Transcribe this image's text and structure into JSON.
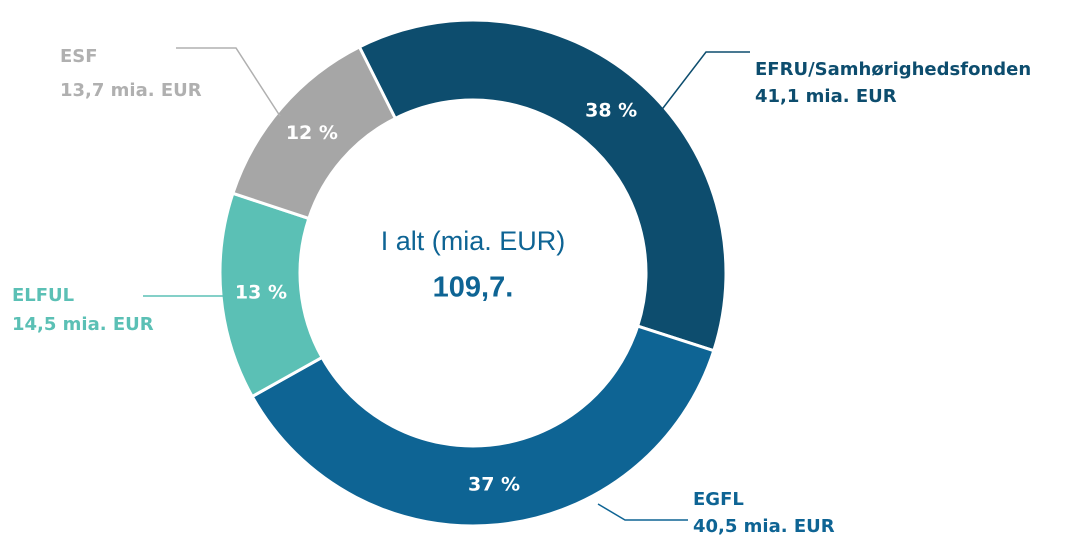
{
  "chart_data": {
    "type": "donut",
    "categories": [
      "EFRU/Samhørighedsfonden",
      "EGFL",
      "ELFUL",
      "ESF"
    ],
    "values": [
      41.1,
      40.5,
      14.5,
      13.7
    ],
    "value_labels": [
      "41,1 mia. EUR",
      "40,5 mia. EUR",
      "14,5 mia. EUR",
      "13,7 mia. EUR"
    ],
    "percentages": [
      38,
      37,
      13,
      12
    ],
    "percentage_labels": [
      "38 %",
      "37 %",
      "13 %",
      "12 %"
    ],
    "colors": [
      "#0d4d6e",
      "#0e6494",
      "#5bc0b5",
      "#a6a6a6"
    ],
    "label_colors": [
      "#0d4d6e",
      "#0e6494",
      "#5bc0b5",
      "#b0b0b0"
    ],
    "center_label": "I alt (mia. EUR)",
    "total": 109.7,
    "total_label": "109,7."
  }
}
